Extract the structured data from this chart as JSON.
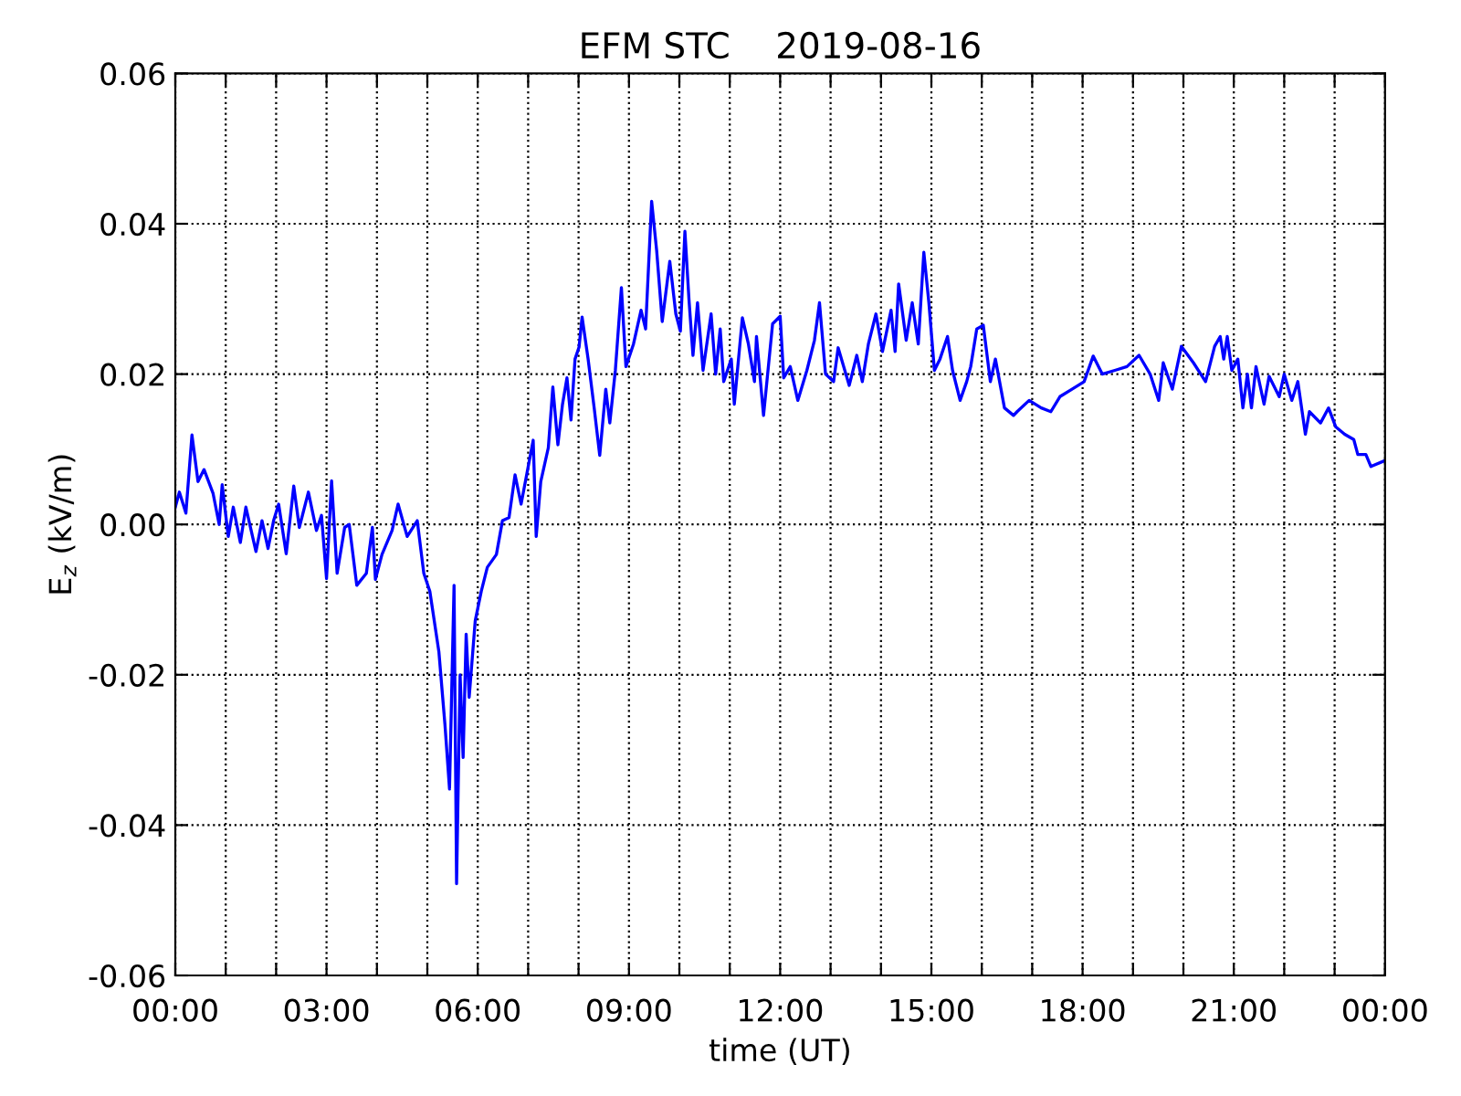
{
  "chart_data": {
    "type": "line",
    "title": "EFM STC    2019-08-16",
    "xlabel": "time (UT)",
    "ylabel": "E$_{z}$ (kV/m)",
    "xlim": [
      0,
      24
    ],
    "ylim": [
      -0.06,
      0.06
    ],
    "xticks": [
      {
        "value": 0,
        "label": "00:00"
      },
      {
        "value": 1,
        "label": null
      },
      {
        "value": 2,
        "label": null
      },
      {
        "value": 3,
        "label": "03:00"
      },
      {
        "value": 4,
        "label": null
      },
      {
        "value": 5,
        "label": null
      },
      {
        "value": 6,
        "label": "06:00"
      },
      {
        "value": 7,
        "label": null
      },
      {
        "value": 8,
        "label": null
      },
      {
        "value": 9,
        "label": "09:00"
      },
      {
        "value": 10,
        "label": null
      },
      {
        "value": 11,
        "label": null
      },
      {
        "value": 12,
        "label": "12:00"
      },
      {
        "value": 13,
        "label": null
      },
      {
        "value": 14,
        "label": null
      },
      {
        "value": 15,
        "label": "15:00"
      },
      {
        "value": 16,
        "label": null
      },
      {
        "value": 17,
        "label": null
      },
      {
        "value": 18,
        "label": "18:00"
      },
      {
        "value": 19,
        "label": null
      },
      {
        "value": 20,
        "label": null
      },
      {
        "value": 21,
        "label": "21:00"
      },
      {
        "value": 22,
        "label": null
      },
      {
        "value": 23,
        "label": null
      },
      {
        "value": 24,
        "label": "00:00"
      }
    ],
    "yticks": [
      {
        "value": -0.06,
        "label": "-0.06"
      },
      {
        "value": -0.04,
        "label": "-0.04"
      },
      {
        "value": -0.02,
        "label": "-0.02"
      },
      {
        "value": 0,
        "label": "0.00"
      },
      {
        "value": 0.02,
        "label": "0.02"
      },
      {
        "value": 0.04,
        "label": "0.04"
      },
      {
        "value": 0.06,
        "label": "0.06"
      }
    ],
    "grid": true,
    "line_style": "solid",
    "x": [
      0.0,
      0.08,
      0.21,
      0.33,
      0.45,
      0.57,
      0.75,
      0.87,
      0.93,
      1.05,
      1.15,
      1.29,
      1.4,
      1.6,
      1.72,
      1.84,
      1.95,
      2.05,
      2.2,
      2.35,
      2.46,
      2.64,
      2.8,
      2.9,
      3.0,
      3.1,
      3.21,
      3.36,
      3.45,
      3.6,
      3.79,
      3.91,
      3.97,
      4.1,
      4.3,
      4.42,
      4.6,
      4.8,
      4.93,
      5.05,
      5.23,
      5.35,
      5.44,
      5.53,
      5.58,
      5.65,
      5.71,
      5.77,
      5.83,
      5.95,
      6.07,
      6.19,
      6.37,
      6.49,
      6.62,
      6.74,
      6.86,
      7.1,
      7.16,
      7.25,
      7.4,
      7.49,
      7.59,
      7.68,
      7.77,
      7.85,
      7.93,
      8.01,
      8.07,
      8.19,
      8.31,
      8.42,
      8.54,
      8.62,
      8.73,
      8.85,
      8.94,
      9.09,
      9.24,
      9.33,
      9.45,
      9.55,
      9.66,
      9.81,
      9.93,
      10.02,
      10.11,
      10.19,
      10.27,
      10.36,
      10.47,
      10.63,
      10.72,
      10.81,
      10.88,
      11.03,
      11.09,
      11.25,
      11.37,
      11.49,
      11.53,
      11.67,
      11.85,
      12.0,
      12.07,
      12.2,
      12.35,
      12.53,
      12.68,
      12.78,
      12.9,
      13.06,
      13.15,
      13.37,
      13.52,
      13.63,
      13.75,
      13.9,
      14.03,
      14.2,
      14.28,
      14.35,
      14.5,
      14.62,
      14.74,
      14.85,
      14.95,
      15.06,
      15.17,
      15.32,
      15.42,
      15.57,
      15.7,
      15.78,
      15.9,
      16.03,
      16.17,
      16.27,
      16.45,
      16.63,
      16.7,
      16.94,
      17.18,
      17.37,
      17.55,
      17.79,
      18.03,
      18.21,
      18.39,
      18.64,
      18.88,
      19.12,
      19.34,
      19.51,
      19.6,
      19.78,
      19.96,
      20.2,
      20.44,
      20.62,
      20.73,
      20.8,
      20.87,
      20.96,
      21.08,
      21.18,
      21.27,
      21.35,
      21.44,
      21.6,
      21.7,
      21.9,
      22.0,
      22.15,
      22.27,
      22.42,
      22.5,
      22.72,
      22.88,
      23.02,
      23.2,
      23.38,
      23.46,
      23.62,
      23.72,
      24.0
    ],
    "series": [
      {
        "color": "#0000ff",
        "values": [
          0.0023,
          0.0043,
          0.0015,
          0.0119,
          0.0057,
          0.0073,
          0.0041,
          0.0,
          0.0053,
          -0.0016,
          0.0023,
          -0.0024,
          0.0023,
          -0.0036,
          0.0005,
          -0.0032,
          0.0005,
          0.0027,
          -0.0039,
          0.0051,
          -0.0004,
          0.0043,
          -0.0008,
          0.0012,
          -0.0072,
          0.0058,
          -0.0065,
          -0.0004,
          0.0,
          -0.0081,
          -0.0065,
          -0.0004,
          -0.0073,
          -0.004,
          -0.0008,
          0.0027,
          -0.0016,
          0.0005,
          -0.0065,
          -0.0089,
          -0.017,
          -0.0267,
          -0.0352,
          -0.0081,
          -0.0478,
          -0.02,
          -0.031,
          -0.0146,
          -0.023,
          -0.0128,
          -0.0089,
          -0.0057,
          -0.004,
          0.0005,
          0.0009,
          0.0066,
          0.0027,
          0.0112,
          -0.0016,
          0.0057,
          0.0102,
          0.0183,
          0.0106,
          0.0159,
          0.0195,
          0.0139,
          0.022,
          0.0236,
          0.0276,
          0.022,
          0.0155,
          0.0092,
          0.018,
          0.0135,
          0.0205,
          0.0315,
          0.021,
          0.024,
          0.0285,
          0.026,
          0.043,
          0.0364,
          0.027,
          0.035,
          0.028,
          0.0257,
          0.039,
          0.03,
          0.0225,
          0.0295,
          0.0205,
          0.028,
          0.02,
          0.026,
          0.019,
          0.022,
          0.016,
          0.0275,
          0.024,
          0.019,
          0.025,
          0.0145,
          0.0267,
          0.0277,
          0.0195,
          0.021,
          0.0165,
          0.0205,
          0.0245,
          0.0295,
          0.02,
          0.019,
          0.0235,
          0.0185,
          0.0225,
          0.019,
          0.024,
          0.028,
          0.023,
          0.0285,
          0.023,
          0.032,
          0.0245,
          0.0295,
          0.024,
          0.0362,
          0.0295,
          0.0205,
          0.022,
          0.025,
          0.0205,
          0.0165,
          0.019,
          0.021,
          0.026,
          0.0265,
          0.019,
          0.022,
          0.0155,
          0.0145,
          0.015,
          0.0165,
          0.0155,
          0.015,
          0.017,
          0.018,
          0.019,
          0.0224,
          0.02,
          0.0205,
          0.021,
          0.0225,
          0.02,
          0.0165,
          0.0215,
          0.018,
          0.0237,
          0.0215,
          0.019,
          0.0237,
          0.025,
          0.022,
          0.025,
          0.0205,
          0.022,
          0.0155,
          0.02,
          0.0155,
          0.021,
          0.016,
          0.0197,
          0.017,
          0.02,
          0.0165,
          0.019,
          0.012,
          0.015,
          0.0135,
          0.0155,
          0.013,
          0.012,
          0.0113,
          0.0093,
          0.0093,
          0.0077,
          0.0085
        ]
      }
    ]
  }
}
